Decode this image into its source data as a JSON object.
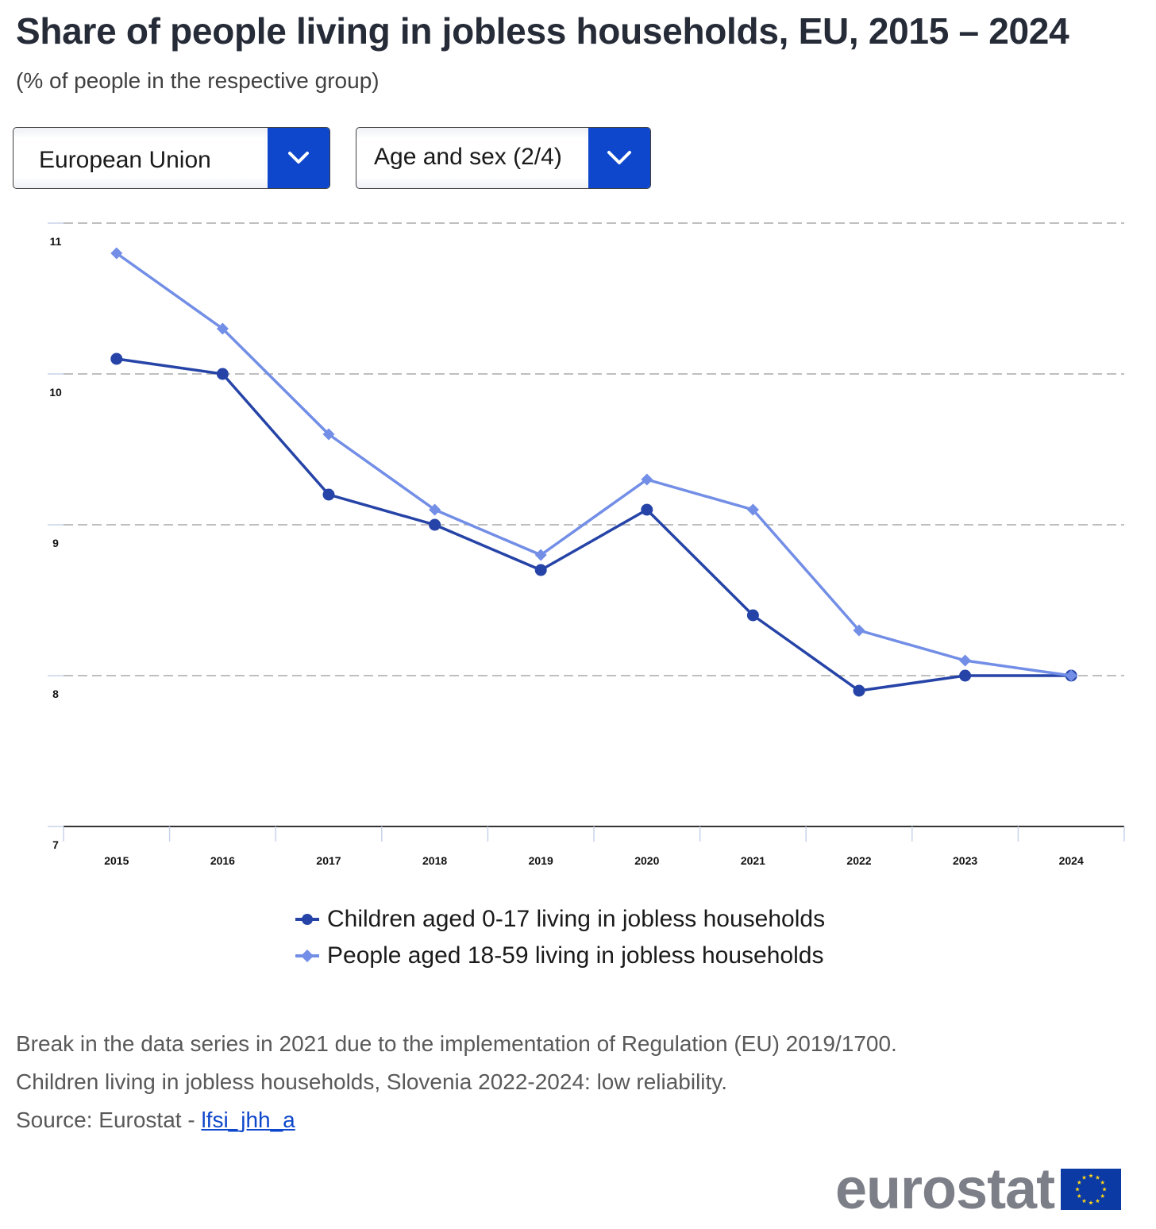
{
  "header": {
    "title": "Share of people living in jobless households, EU, 2015 – 2024",
    "subtitle": "(% of people in the respective group)"
  },
  "controls": {
    "geo_dropdown": {
      "selected": "European Union",
      "icon": "chevron-down-icon"
    },
    "dimension_dropdown": {
      "selected": "Age and sex (2/4)",
      "icon": "chevron-down-icon"
    }
  },
  "colors": {
    "series_children": "#2644a7",
    "series_adults": "#728ee6",
    "accent": "#0e47cb",
    "grid": "#aaaaaa",
    "axis": "#333333"
  },
  "chart_data": {
    "type": "line",
    "title": "Share of people living in jobless households, EU, 2015 – 2024",
    "subtitle": "(% of people in the respective group)",
    "xlabel": "",
    "ylabel": "",
    "x": [
      "2015",
      "2016",
      "2017",
      "2018",
      "2019",
      "2020",
      "2021",
      "2022",
      "2023",
      "2024"
    ],
    "ylim": [
      7,
      11
    ],
    "yticks": [
      7,
      8,
      9,
      10,
      11
    ],
    "grid": true,
    "legend_position": "bottom-center",
    "series": [
      {
        "name": "Children aged 0-17 living in jobless households",
        "marker": "circle",
        "color": "#2644a7",
        "values": [
          10.1,
          10.0,
          9.2,
          9.0,
          8.7,
          9.1,
          8.4,
          7.9,
          8.0,
          8.0
        ]
      },
      {
        "name": "People aged 18-59 living in jobless households",
        "marker": "diamond",
        "color": "#728ee6",
        "values": [
          10.8,
          10.3,
          9.6,
          9.1,
          8.8,
          9.3,
          9.1,
          8.3,
          8.1,
          8.0
        ]
      }
    ]
  },
  "notes": {
    "lines": [
      "Break in the data series in 2021 due to the implementation of Regulation (EU) 2019/1700.",
      "Children living in jobless households, Slovenia 2022-2024: low reliability."
    ],
    "source_prefix": "Source: Eurostat - ",
    "source_link": "lfsi_jhh_a"
  },
  "logo": {
    "text": "eurostat",
    "icon": "eu-flag-icon"
  }
}
